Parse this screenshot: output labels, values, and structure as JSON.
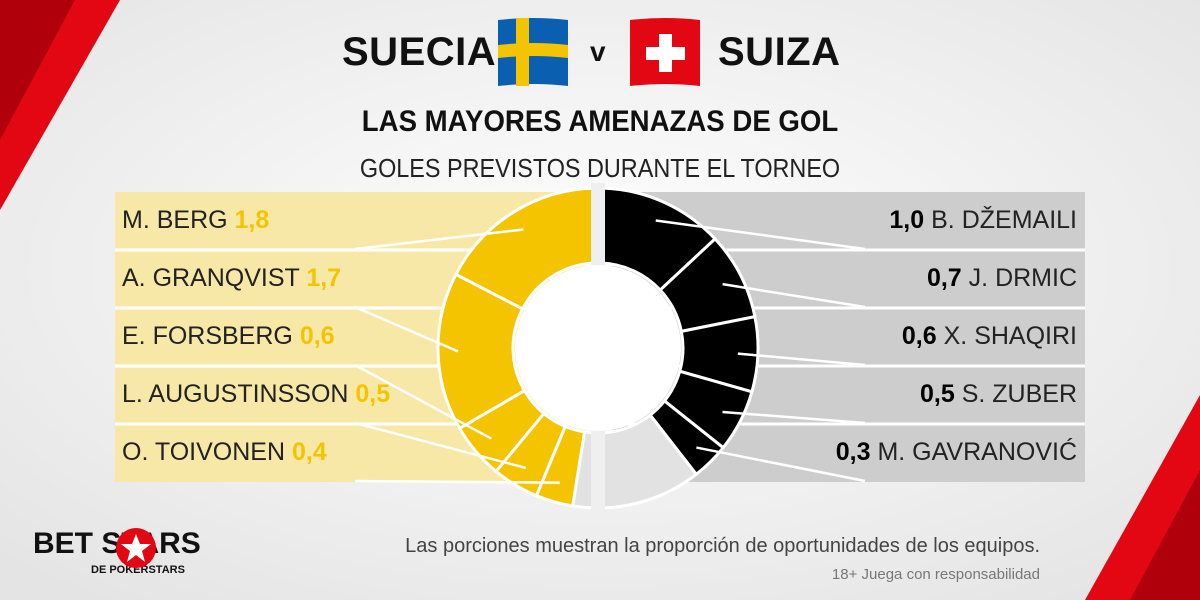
{
  "header": {
    "team_left": "SUECIA",
    "vs": "v",
    "team_right": "SUIZA",
    "title": "LAS MAYORES AMENAZAS DE GOL",
    "subtitle": "GOLES PREVISTOS DURANTE EL TORNEO"
  },
  "colors": {
    "sweden": "#f5c400",
    "switzerland": "#000000",
    "rest": "#e2e2e2",
    "panel_left": "#f8e8a8",
    "panel_right": "#cdcdcd"
  },
  "chart_data": {
    "type": "pie",
    "title": "LAS MAYORES AMENAZAS DE GOL",
    "subtitle": "GOLES PREVISTOS DURANTE EL TORNEO",
    "series": [
      {
        "name": "SUECIA",
        "players": [
          "M. BERG",
          "A. GRANQVIST",
          "E. FORSBERG",
          "L. AUGUSTINSSON",
          "O. TOIVONEN"
        ],
        "values": [
          1.8,
          1.7,
          0.6,
          0.5,
          0.4
        ],
        "labels": [
          "1,8",
          "1,7",
          "0,6",
          "0,5",
          "0,4"
        ]
      },
      {
        "name": "SUIZA",
        "players": [
          "B. DŽEMAILI",
          "J. DRMIC",
          "X. SHAQIRI",
          "S. ZUBER",
          "M. GAVRANOVIĆ"
        ],
        "values": [
          1.0,
          0.7,
          0.6,
          0.5,
          0.3
        ],
        "labels": [
          "1,0",
          "0,7",
          "0,6",
          "0,5",
          "0,3"
        ]
      }
    ]
  },
  "footer": {
    "logo_text": "BET STARS",
    "logo_sub": "DE POKERSTARS",
    "note": "Las porciones muestran la proporción de oportunidades de los equipos.",
    "responsible": "18+ Juega con responsabilidad"
  }
}
